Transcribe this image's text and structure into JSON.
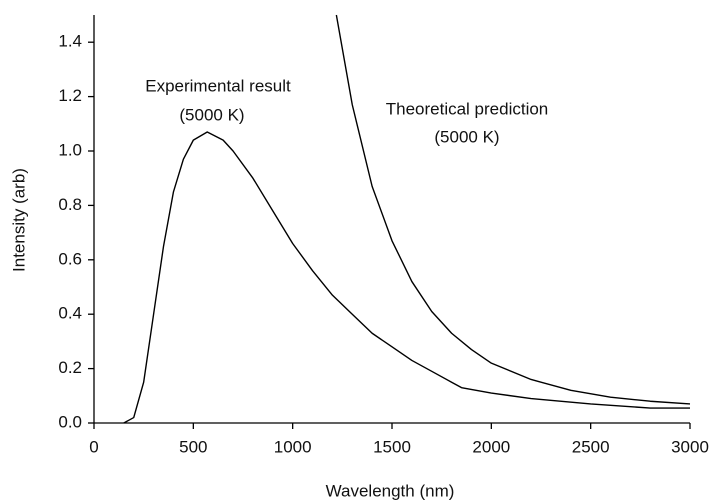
{
  "chart_data": {
    "type": "line",
    "xlabel": "Wavelength (nm)",
    "ylabel": "Intensity (arb)",
    "annotations": [
      "Experimental result",
      "(5000 K)",
      "Theoretical prediction",
      "(5000 K)"
    ],
    "series": [
      {
        "color": "#000000",
        "x": [
          150,
          200,
          250,
          300,
          350,
          400,
          450,
          500,
          570,
          650,
          700,
          800,
          900,
          1000,
          1100,
          1200,
          1300,
          1400,
          1500,
          1600,
          1700,
          1800,
          1850,
          2000,
          2200,
          2500,
          2800,
          3000
        ],
        "values": [
          0,
          0.02,
          0.15,
          0.4,
          0.65,
          0.85,
          0.97,
          1.04,
          1.07,
          1.04,
          1.0,
          0.9,
          0.78,
          0.66,
          0.56,
          0.47,
          0.4,
          0.33,
          0.28,
          0.23,
          0.19,
          0.15,
          0.13,
          0.11,
          0.09,
          0.07,
          0.055,
          0.055
        ]
      },
      {
        "color": "#000000",
        "x": [
          1220,
          1300,
          1400,
          1500,
          1600,
          1700,
          1800,
          1900,
          2000,
          2200,
          2400,
          2600,
          2800,
          3000
        ],
        "values": [
          1.5,
          1.17,
          0.87,
          0.67,
          0.52,
          0.41,
          0.33,
          0.27,
          0.22,
          0.16,
          0.12,
          0.095,
          0.08,
          0.07
        ]
      }
    ],
    "xlim": [
      0,
      3000
    ],
    "xticks": [
      0,
      500,
      1000,
      1500,
      2000,
      2500,
      3000
    ],
    "ylim": [
      0,
      1.5
    ],
    "yticks": [
      {
        "value": 0,
        "label": "0.0"
      },
      0.2,
      0.4,
      0.6,
      0.8,
      {
        "value": 1,
        "label": "1.0"
      },
      1.2,
      1.4
    ],
    "grid": false
  }
}
